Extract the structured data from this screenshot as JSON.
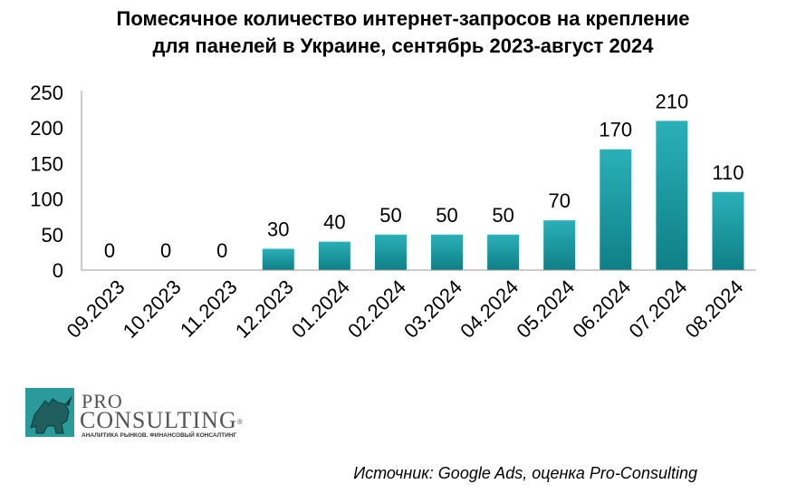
{
  "chart_data": {
    "type": "bar",
    "title_lines": [
      "Помесячное количество интернет-запросов на крепление",
      "для панелей в Украине, сентябрь 2023-август 2024"
    ],
    "categories": [
      "09.2023",
      "10.2023",
      "11.2023",
      "12.2023",
      "01.2024",
      "02.2024",
      "03.2024",
      "04.2024",
      "05.2024",
      "06.2024",
      "07.2024",
      "08.2024"
    ],
    "values": [
      0,
      0,
      0,
      30,
      40,
      50,
      50,
      50,
      70,
      170,
      210,
      110
    ],
    "ylim": [
      0,
      250
    ],
    "yticks": [
      0,
      50,
      100,
      150,
      200,
      250
    ],
    "xlabel": "",
    "ylabel": "",
    "grid": false,
    "data_labels": true,
    "colors": {
      "bar_top": "#2ab0b8",
      "bar_bottom": "#0f7f86",
      "axis": "#999999"
    }
  },
  "logo": {
    "line1": "PRO",
    "line2": "CONSULTING",
    "tagline": "АНАЛИТИКА РЫНКОВ. ФИНАНСОВЫЙ КОНСАЛТИНГ",
    "colors": {
      "badge": "#2a9a9a",
      "text": "#555555",
      "tagline": "#333333"
    }
  },
  "source": "Источник: Google Ads, оценка Pro-Consulting"
}
